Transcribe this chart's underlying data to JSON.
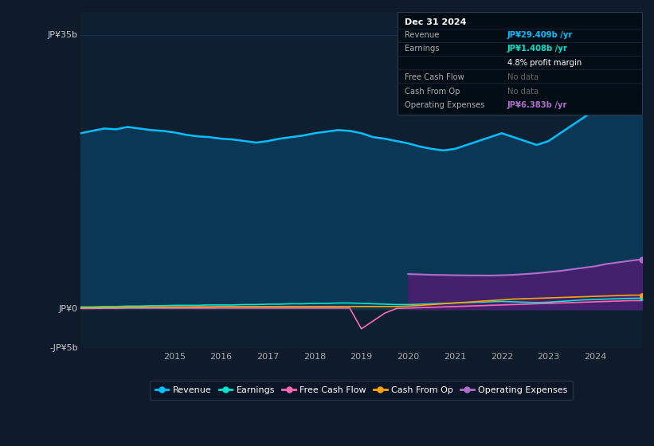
{
  "bg_color": "#0d1b2a",
  "plot_bg_color": "#0d1f30",
  "ylabel_top": "JP¥35b",
  "ylabel_zero": "JP¥0",
  "ylabel_neg": "-JP¥5b",
  "ylim": [
    -5,
    38
  ],
  "years_x": [
    2013.0,
    2013.25,
    2013.5,
    2013.75,
    2014.0,
    2014.25,
    2014.5,
    2014.75,
    2015.0,
    2015.25,
    2015.5,
    2015.75,
    2016.0,
    2016.25,
    2016.5,
    2016.75,
    2017.0,
    2017.25,
    2017.5,
    2017.75,
    2018.0,
    2018.25,
    2018.5,
    2018.75,
    2019.0,
    2019.25,
    2019.5,
    2019.75,
    2020.0,
    2020.25,
    2020.5,
    2020.75,
    2021.0,
    2021.25,
    2021.5,
    2021.75,
    2022.0,
    2022.25,
    2022.5,
    2022.75,
    2023.0,
    2023.25,
    2023.5,
    2023.75,
    2024.0,
    2024.25,
    2024.5,
    2024.75,
    2025.0
  ],
  "revenue": [
    22.5,
    22.8,
    23.1,
    23.0,
    23.3,
    23.1,
    22.9,
    22.8,
    22.6,
    22.3,
    22.1,
    22.0,
    21.8,
    21.7,
    21.5,
    21.3,
    21.5,
    21.8,
    22.0,
    22.2,
    22.5,
    22.7,
    22.9,
    22.8,
    22.5,
    22.0,
    21.8,
    21.5,
    21.2,
    20.8,
    20.5,
    20.3,
    20.5,
    21.0,
    21.5,
    22.0,
    22.5,
    22.0,
    21.5,
    21.0,
    21.5,
    22.5,
    23.5,
    24.5,
    25.5,
    26.5,
    27.5,
    28.5,
    29.4
  ],
  "earnings": [
    0.3,
    0.3,
    0.35,
    0.35,
    0.4,
    0.4,
    0.45,
    0.45,
    0.5,
    0.5,
    0.5,
    0.55,
    0.55,
    0.55,
    0.6,
    0.6,
    0.65,
    0.65,
    0.7,
    0.7,
    0.75,
    0.75,
    0.8,
    0.8,
    0.75,
    0.7,
    0.65,
    0.6,
    0.6,
    0.65,
    0.7,
    0.75,
    0.8,
    0.85,
    0.9,
    0.95,
    1.0,
    0.95,
    0.9,
    0.85,
    0.9,
    1.0,
    1.1,
    1.2,
    1.25,
    1.3,
    1.35,
    1.4,
    1.408
  ],
  "free_cash_flow": [
    0.1,
    0.1,
    0.12,
    0.12,
    0.15,
    0.15,
    0.15,
    0.15,
    0.15,
    0.15,
    0.15,
    0.15,
    0.15,
    0.15,
    0.15,
    0.15,
    0.15,
    0.15,
    0.15,
    0.15,
    0.15,
    0.15,
    0.15,
    0.15,
    -2.5,
    -1.5,
    -0.5,
    0.1,
    0.15,
    0.2,
    0.25,
    0.3,
    0.35,
    0.4,
    0.45,
    0.5,
    0.55,
    0.6,
    0.65,
    0.7,
    0.75,
    0.8,
    0.85,
    0.9,
    0.95,
    1.0,
    1.05,
    1.1,
    1.1
  ],
  "cash_from_op": [
    0.2,
    0.2,
    0.22,
    0.22,
    0.25,
    0.25,
    0.28,
    0.28,
    0.3,
    0.3,
    0.32,
    0.32,
    0.35,
    0.35,
    0.35,
    0.35,
    0.35,
    0.35,
    0.35,
    0.35,
    0.35,
    0.35,
    0.35,
    0.35,
    0.35,
    0.35,
    0.35,
    0.35,
    0.4,
    0.5,
    0.6,
    0.7,
    0.8,
    0.9,
    1.0,
    1.1,
    1.2,
    1.3,
    1.35,
    1.4,
    1.45,
    1.5,
    1.55,
    1.6,
    1.65,
    1.7,
    1.75,
    1.8,
    1.8
  ],
  "opex_x": [
    2020.0,
    2020.25,
    2020.5,
    2020.75,
    2021.0,
    2021.25,
    2021.5,
    2021.75,
    2022.0,
    2022.25,
    2022.5,
    2022.75,
    2023.0,
    2023.25,
    2023.5,
    2023.75,
    2024.0,
    2024.25,
    2024.5,
    2024.75,
    2025.0
  ],
  "op_expenses": [
    4.5,
    4.45,
    4.4,
    4.38,
    4.35,
    4.33,
    4.32,
    4.31,
    4.35,
    4.4,
    4.5,
    4.6,
    4.75,
    4.9,
    5.1,
    5.3,
    5.5,
    5.8,
    6.0,
    6.2,
    6.383
  ],
  "revenue_color": "#00bfff",
  "earnings_color": "#00e5cc",
  "fcf_color": "#ff69b4",
  "cashop_color": "#ffa500",
  "opex_color": "#b06ecc",
  "revenue_fill_color": "#0a3a5a",
  "opex_fill_color": "#4a1f70",
  "xticks": [
    2015,
    2016,
    2017,
    2018,
    2019,
    2020,
    2021,
    2022,
    2023,
    2024
  ],
  "legend_items": [
    "Revenue",
    "Earnings",
    "Free Cash Flow",
    "Cash From Op",
    "Operating Expenses"
  ],
  "legend_colors": [
    "#00bfff",
    "#00e5cc",
    "#ff69b4",
    "#ffa500",
    "#b06ecc"
  ],
  "tooltip_title": "Dec 31 2024",
  "tooltip_revenue_label": "Revenue",
  "tooltip_revenue_val": "JP¥29.409b /yr",
  "tooltip_earnings_label": "Earnings",
  "tooltip_earnings_val": "JP¥1.408b /yr",
  "tooltip_margin": "4.8% profit margin",
  "tooltip_fcf_label": "Free Cash Flow",
  "tooltip_fcf_val": "No data",
  "tooltip_cashop_label": "Cash From Op",
  "tooltip_cashop_val": "No data",
  "tooltip_opex_label": "Operating Expenses",
  "tooltip_opex_val": "JP¥6.383b /yr"
}
